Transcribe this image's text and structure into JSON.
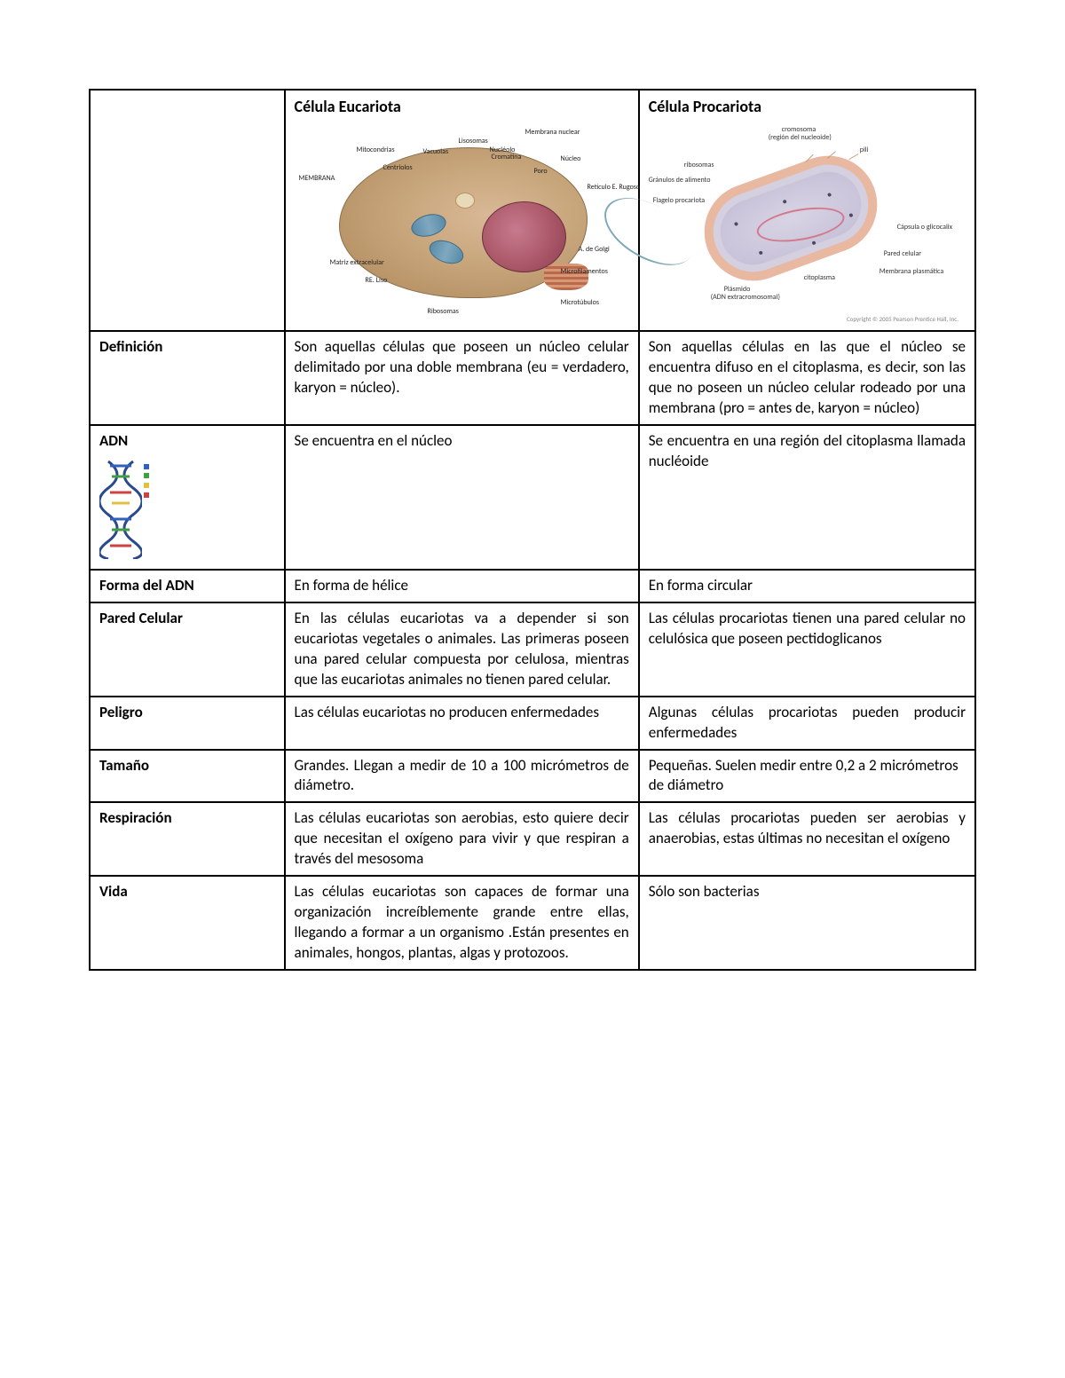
{
  "table": {
    "border_color": "#000000",
    "font_family": "Calibri",
    "font_size": 17,
    "column_widths_pct": [
      22,
      40,
      38
    ],
    "headers": {
      "eucariota": "Célula Eucariota",
      "procariota": "Célula Procariota"
    },
    "eucariota_diagram": {
      "type": "infographic",
      "background_color": "#c9a77d",
      "nucleus_color": "#a85566",
      "mitochondria_color": "#5a8ba8",
      "golgi_color": "#b86a4a",
      "labels": {
        "membrana": "MEMBRANA",
        "mitocondrias": "Mitocondrias",
        "centriolos": "Centriolos",
        "vacuolas": "Vacuolas",
        "lisosomas": "Lisosomas",
        "nucleolo": "Nucléolo",
        "cromatina": "Cromatina",
        "membrana_nuclear": "Membrana nuclear",
        "nucleo": "Núcleo",
        "poro": "Poro",
        "reticulo": "Retículo E. Rugoso",
        "golgi": "A. de Golgi",
        "microfilamentos": "Microfilamentos",
        "microtubulos": "Microtúbulos",
        "ribosomas": "Ribosomas",
        "re_liso": "RE. Liso",
        "matriz": "Matriz extracelular"
      }
    },
    "procariota_diagram": {
      "type": "infographic",
      "capsule_color": "#e8b8a0",
      "cytoplasm_color": "#d4d0e0",
      "dna_color": "#d4788c",
      "flagellum_color": "#7da8b8",
      "labels": {
        "cromosoma": "cromosoma",
        "cromosoma_sub": "(región del nucleoide)",
        "pili": "pili",
        "ribosomas": "ribosomas",
        "granulos": "Gránulos de alimento",
        "flagelo": "Flagelo procariota",
        "plasmido": "Plásmido",
        "plasmido_sub": "(ADN extracromosomal)",
        "citoplasma": "citoplasma",
        "capsula": "Cápsula o glicocalix",
        "pared": "Pared celular",
        "membrana": "Membrana plasmática",
        "copyright": "Copyright © 2005 Pearson Prentice Hall, Inc."
      }
    },
    "rows": [
      {
        "label": "Definición",
        "eu": "Son aquellas células que poseen un núcleo celular delimitado por una doble membrana (eu = verdadero, karyon = núcleo).",
        "pro": "Son aquellas células en las que el núcleo se encuentra difuso en el citoplasma, es decir, son las que no poseen un núcleo celular rodeado por una membrana (pro = antes de, karyon = núcleo)",
        "eu_justify": true,
        "pro_justify": true
      },
      {
        "label": "ADN",
        "has_dna_icon": true,
        "eu": "Se encuentra en el núcleo",
        "pro": "Se encuentra en una región del citoplasma llamada nucléoide",
        "pro_justify": true
      },
      {
        "label": "Forma del ADN",
        "eu": "En forma de hélice",
        "pro": "En forma circular"
      },
      {
        "label": "Pared Celular",
        "eu": "En las células eucariotas va a depender si son eucariotas vegetales o animales. Las primeras poseen una pared celular compuesta por celulosa, mientras que las eucariotas animales no tienen pared celular.",
        "pro": "Las células procariotas tienen una pared celular no celulósica que poseen pectidoglicanos",
        "eu_justify": true,
        "pro_justify": true
      },
      {
        "label": "Peligro",
        "eu": "Las células eucariotas no producen enfermedades",
        "pro": "Algunas células procariotas pueden producir enfermedades",
        "eu_justify": true,
        "pro_justify": true
      },
      {
        "label": "Tamaño",
        "eu": "Grandes. Llegan a medir de 10 a 100 micrómetros de diámetro.",
        "pro": "Pequeñas. Suelen medir entre 0,2 a 2 micrómetros de diámetro",
        "eu_justify": true
      },
      {
        "label": "Respiración",
        "eu": "Las células eucariotas son aerobias, esto quiere decir que necesitan el oxígeno para vivir y que respiran a través del mesosoma",
        "pro": "Las células procariotas pueden ser aerobias y anaerobias, estas últimas no necesitan el oxígeno",
        "eu_justify": true,
        "pro_justify": true
      },
      {
        "label": "Vida",
        "eu": "Las células eucariotas son capaces de formar una organización increíblemente grande entre ellas, llegando a formar a un organismo .Están presentes en animales, hongos, plantas, algas y protozoos.",
        "pro": "Sólo son bacterias",
        "eu_justify": true
      }
    ],
    "dna_icon": {
      "strand_colors": [
        "#2a4a8a",
        "#2a4a8a"
      ],
      "base_colors": {
        "blue": "#3060c0",
        "green": "#40a040",
        "red": "#d04040",
        "yellow": "#e0c040"
      },
      "label_adn": "ADN"
    }
  }
}
